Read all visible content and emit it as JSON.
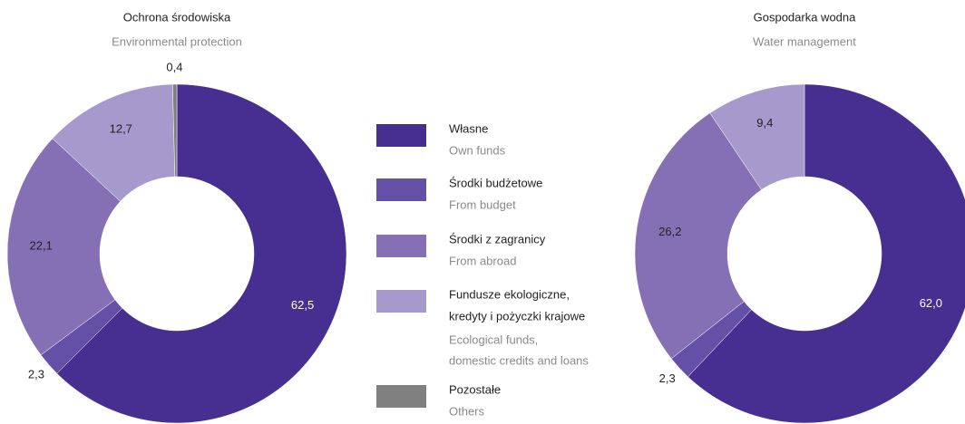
{
  "chart_data": [
    {
      "type": "donut",
      "title": "Ochrona środowiska",
      "subtitle": "Environmental protection",
      "values": [
        62.5,
        2.3,
        22.1,
        12.7,
        0.4
      ],
      "value_labels": [
        "62,5",
        "2,3",
        "22,1",
        "12,7",
        "0,4"
      ]
    },
    {
      "type": "donut",
      "title": "Gospodarka wodna",
      "subtitle": "Water management",
      "values": [
        62.0,
        2.3,
        26.2,
        9.4
      ],
      "value_labels": [
        "62,0",
        "2,3",
        "26,2",
        "9,4"
      ]
    }
  ],
  "legend": {
    "items": [
      {
        "name": [
          "Własne"
        ],
        "name_en": [
          "Own funds"
        ],
        "color": "#472f92"
      },
      {
        "name": [
          "Środki budżetowe"
        ],
        "name_en": [
          "From budget"
        ],
        "color": "#6550a8"
      },
      {
        "name": [
          "Środki z zagranicy"
        ],
        "name_en": [
          "From abroad"
        ],
        "color": "#8670b5"
      },
      {
        "name": [
          "Fundusze ekologiczne,",
          "kredyty i pożyczki krajowe"
        ],
        "name_en": [
          "Ecological funds,",
          "domestic credits and loans"
        ],
        "color": "#a699cb"
      },
      {
        "name": [
          "Pozostałe"
        ],
        "name_en": [
          "Others"
        ],
        "color": "#808080"
      }
    ]
  }
}
